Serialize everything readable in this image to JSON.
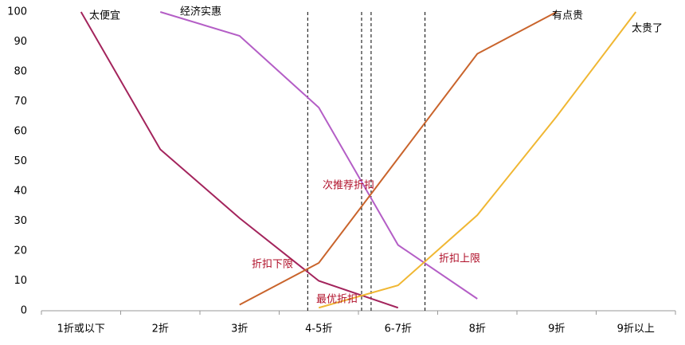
{
  "chart_data": {
    "type": "line",
    "categories": [
      "1折或以下",
      "2折",
      "3折",
      "4-5折",
      "6-7折",
      "8折",
      "9折",
      "9折以上"
    ],
    "series": [
      {
        "name": "太便宜",
        "color": "#a3245c",
        "values": [
          100,
          54,
          31,
          10,
          1,
          null,
          null,
          null
        ]
      },
      {
        "name": "经济实惠",
        "color": "#b45ec6",
        "values": [
          null,
          100,
          92,
          68,
          22,
          4,
          null,
          null
        ]
      },
      {
        "name": "有点贵",
        "color": "#c9642c",
        "values": [
          null,
          null,
          2,
          16,
          51,
          86,
          100,
          null
        ]
      },
      {
        "name": "太贵了",
        "color": "#f0b733",
        "values": [
          null,
          null,
          null,
          1,
          8.5,
          32,
          65,
          100
        ]
      }
    ],
    "reference_lines": [
      2.86,
      3.54,
      3.66,
      4.34
    ],
    "annotations": [
      "折扣下限",
      "次推荐折扣",
      "最优折扣",
      "折扣上限"
    ],
    "ylim": [
      0,
      100
    ],
    "yticks": [
      0,
      10,
      20,
      30,
      40,
      50,
      60,
      70,
      80,
      90,
      100
    ],
    "grid": false
  }
}
